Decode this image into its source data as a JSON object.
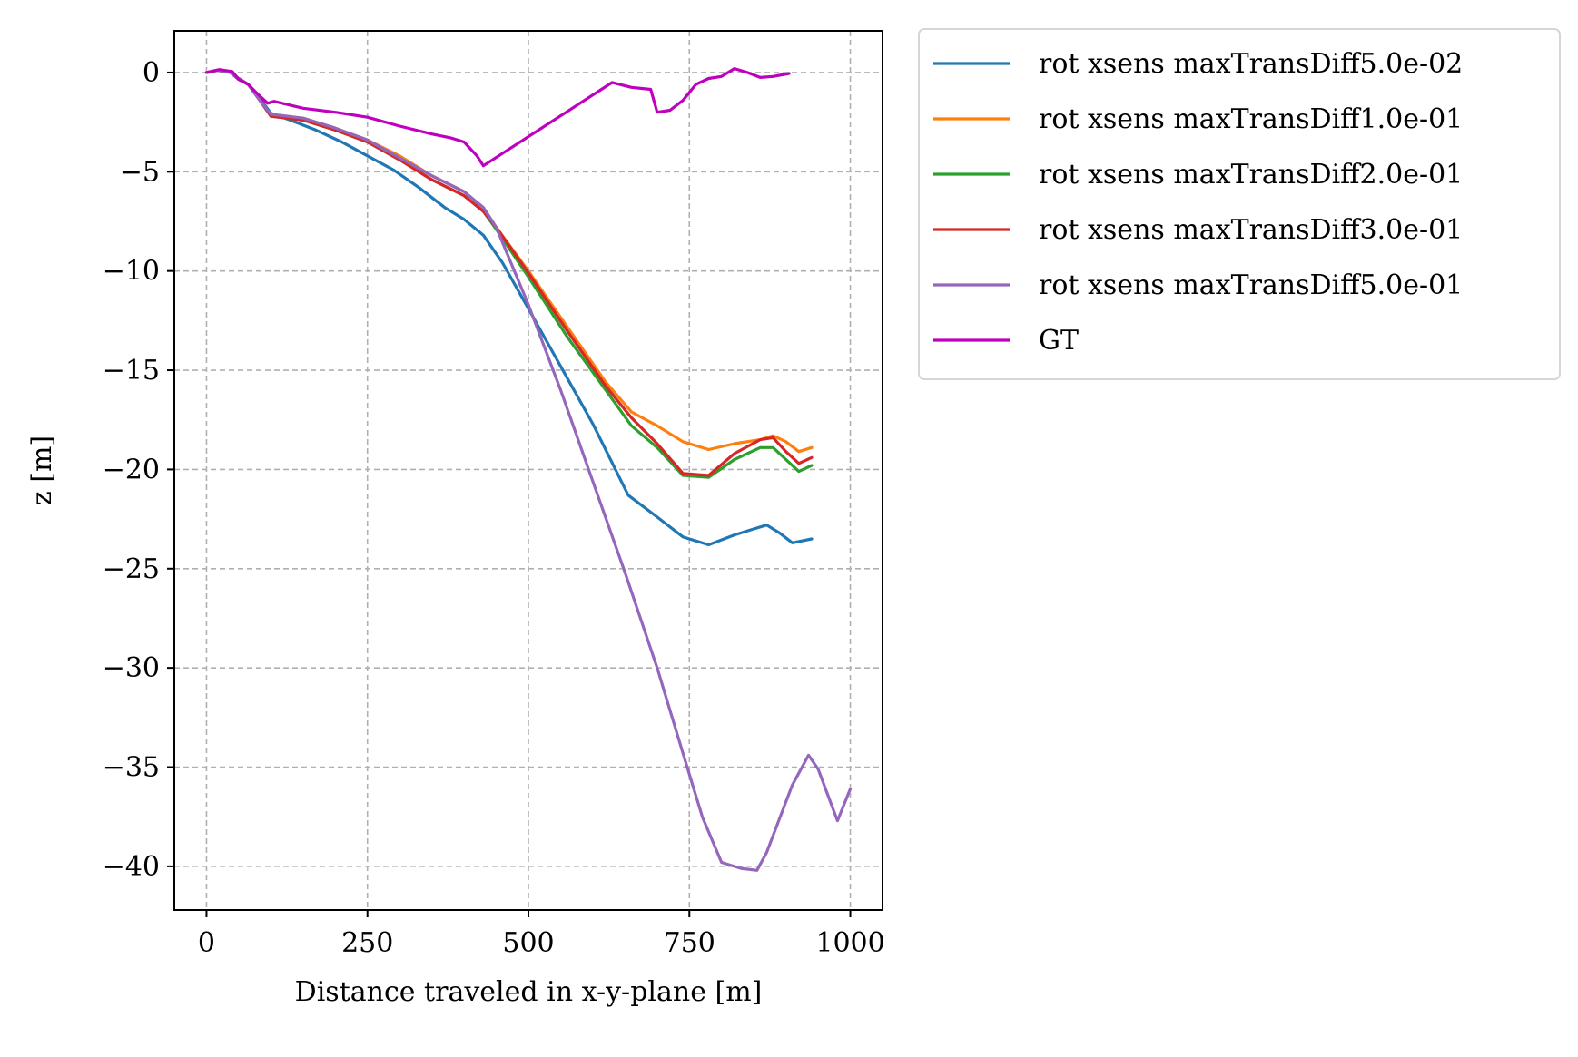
{
  "chart_data": {
    "type": "line",
    "title": "",
    "xlabel": "Distance traveled in x-y-plane [m]",
    "ylabel": "z [m]",
    "xlim": [
      -50,
      1050
    ],
    "ylim": [
      -42.2,
      2.1
    ],
    "xticks": [
      0,
      250,
      500,
      750,
      1000
    ],
    "xtick_labels": [
      "0",
      "250",
      "500",
      "750",
      "1000"
    ],
    "yticks": [
      0,
      -5,
      -10,
      -15,
      -20,
      -25,
      -30,
      -35,
      -40
    ],
    "ytick_labels": [
      "0",
      "−5",
      "−10",
      "−15",
      "−20",
      "−25",
      "−30",
      "−35",
      "−40"
    ],
    "grid": true,
    "legend_position": "outside-top-right",
    "series": [
      {
        "name": "rot xsens maxTransDiff5.0e-02",
        "color": "#1f77b4",
        "points": [
          [
            0,
            0
          ],
          [
            15,
            0.1
          ],
          [
            35,
            0.05
          ],
          [
            50,
            -0.35
          ],
          [
            65,
            -0.6
          ],
          [
            85,
            -1.4
          ],
          [
            100,
            -2.05
          ],
          [
            130,
            -2.4
          ],
          [
            170,
            -2.9
          ],
          [
            210,
            -3.5
          ],
          [
            250,
            -4.2
          ],
          [
            290,
            -4.9
          ],
          [
            330,
            -5.8
          ],
          [
            370,
            -6.8
          ],
          [
            400,
            -7.4
          ],
          [
            430,
            -8.2
          ],
          [
            460,
            -9.6
          ],
          [
            500,
            -11.9
          ],
          [
            550,
            -14.8
          ],
          [
            600,
            -17.7
          ],
          [
            655,
            -21.3
          ],
          [
            700,
            -22.4
          ],
          [
            740,
            -23.4
          ],
          [
            780,
            -23.8
          ],
          [
            820,
            -23.3
          ],
          [
            850,
            -23.0
          ],
          [
            870,
            -22.8
          ],
          [
            890,
            -23.2
          ],
          [
            910,
            -23.7
          ],
          [
            940,
            -23.5
          ]
        ]
      },
      {
        "name": "rot xsens maxTransDiff1.0e-01",
        "color": "#ff7f0e",
        "points": [
          [
            0,
            0
          ],
          [
            15,
            0.1
          ],
          [
            35,
            0.05
          ],
          [
            50,
            -0.3
          ],
          [
            65,
            -0.6
          ],
          [
            85,
            -1.5
          ],
          [
            100,
            -2.2
          ],
          [
            150,
            -2.3
          ],
          [
            200,
            -2.8
          ],
          [
            250,
            -3.4
          ],
          [
            300,
            -4.2
          ],
          [
            350,
            -5.2
          ],
          [
            400,
            -6.0
          ],
          [
            430,
            -6.8
          ],
          [
            450,
            -7.8
          ],
          [
            500,
            -10.0
          ],
          [
            560,
            -12.8
          ],
          [
            620,
            -15.6
          ],
          [
            660,
            -17.1
          ],
          [
            700,
            -17.8
          ],
          [
            740,
            -18.6
          ],
          [
            780,
            -19.0
          ],
          [
            820,
            -18.7
          ],
          [
            860,
            -18.5
          ],
          [
            880,
            -18.3
          ],
          [
            900,
            -18.6
          ],
          [
            920,
            -19.1
          ],
          [
            940,
            -18.9
          ]
        ]
      },
      {
        "name": "rot xsens maxTransDiff2.0e-01",
        "color": "#2ca02c",
        "points": [
          [
            0,
            0
          ],
          [
            15,
            0.1
          ],
          [
            35,
            0.05
          ],
          [
            50,
            -0.3
          ],
          [
            65,
            -0.6
          ],
          [
            85,
            -1.5
          ],
          [
            100,
            -2.2
          ],
          [
            150,
            -2.4
          ],
          [
            200,
            -2.9
          ],
          [
            250,
            -3.5
          ],
          [
            300,
            -4.4
          ],
          [
            350,
            -5.4
          ],
          [
            400,
            -6.2
          ],
          [
            430,
            -7.0
          ],
          [
            450,
            -7.9
          ],
          [
            500,
            -10.3
          ],
          [
            560,
            -13.3
          ],
          [
            620,
            -16.0
          ],
          [
            660,
            -17.8
          ],
          [
            700,
            -18.9
          ],
          [
            740,
            -20.3
          ],
          [
            780,
            -20.4
          ],
          [
            820,
            -19.5
          ],
          [
            860,
            -18.9
          ],
          [
            880,
            -18.9
          ],
          [
            900,
            -19.5
          ],
          [
            920,
            -20.1
          ],
          [
            940,
            -19.8
          ]
        ]
      },
      {
        "name": "rot xsens maxTransDiff3.0e-01",
        "color": "#d62728",
        "points": [
          [
            0,
            0
          ],
          [
            15,
            0.1
          ],
          [
            35,
            0.05
          ],
          [
            50,
            -0.3
          ],
          [
            65,
            -0.6
          ],
          [
            85,
            -1.5
          ],
          [
            100,
            -2.2
          ],
          [
            150,
            -2.4
          ],
          [
            200,
            -2.9
          ],
          [
            250,
            -3.5
          ],
          [
            300,
            -4.4
          ],
          [
            350,
            -5.4
          ],
          [
            400,
            -6.2
          ],
          [
            430,
            -7.0
          ],
          [
            450,
            -7.8
          ],
          [
            500,
            -10.1
          ],
          [
            560,
            -13.0
          ],
          [
            620,
            -15.8
          ],
          [
            660,
            -17.4
          ],
          [
            700,
            -18.7
          ],
          [
            740,
            -20.2
          ],
          [
            780,
            -20.3
          ],
          [
            820,
            -19.2
          ],
          [
            860,
            -18.5
          ],
          [
            880,
            -18.4
          ],
          [
            900,
            -19.1
          ],
          [
            920,
            -19.7
          ],
          [
            940,
            -19.4
          ]
        ]
      },
      {
        "name": "rot xsens maxTransDiff5.0e-01",
        "color": "#9467bd",
        "points": [
          [
            0,
            0
          ],
          [
            15,
            0.1
          ],
          [
            35,
            0.05
          ],
          [
            50,
            -0.3
          ],
          [
            65,
            -0.6
          ],
          [
            85,
            -1.5
          ],
          [
            100,
            -2.1
          ],
          [
            150,
            -2.3
          ],
          [
            200,
            -2.8
          ],
          [
            250,
            -3.4
          ],
          [
            300,
            -4.3
          ],
          [
            350,
            -5.2
          ],
          [
            400,
            -6.0
          ],
          [
            430,
            -6.8
          ],
          [
            450,
            -7.8
          ],
          [
            500,
            -11.7
          ],
          [
            550,
            -16.0
          ],
          [
            600,
            -20.6
          ],
          [
            650,
            -25.2
          ],
          [
            700,
            -30.0
          ],
          [
            740,
            -34.3
          ],
          [
            770,
            -37.5
          ],
          [
            800,
            -39.8
          ],
          [
            830,
            -40.1
          ],
          [
            855,
            -40.2
          ],
          [
            870,
            -39.3
          ],
          [
            890,
            -37.6
          ],
          [
            910,
            -35.9
          ],
          [
            935,
            -34.4
          ],
          [
            950,
            -35.1
          ],
          [
            965,
            -36.4
          ],
          [
            980,
            -37.7
          ],
          [
            1000,
            -36.1
          ]
        ]
      },
      {
        "name": "GT",
        "color": "#bf00bf",
        "points": [
          [
            0,
            0
          ],
          [
            20,
            0.15
          ],
          [
            40,
            0.05
          ],
          [
            50,
            -0.35
          ],
          [
            65,
            -0.6
          ],
          [
            80,
            -1.1
          ],
          [
            95,
            -1.55
          ],
          [
            105,
            -1.45
          ],
          [
            150,
            -1.8
          ],
          [
            200,
            -2.0
          ],
          [
            250,
            -2.25
          ],
          [
            300,
            -2.7
          ],
          [
            350,
            -3.1
          ],
          [
            380,
            -3.3
          ],
          [
            400,
            -3.5
          ],
          [
            420,
            -4.2
          ],
          [
            430,
            -4.7
          ],
          [
            630,
            -0.5
          ],
          [
            660,
            -0.75
          ],
          [
            690,
            -0.85
          ],
          [
            700,
            -2.0
          ],
          [
            720,
            -1.9
          ],
          [
            740,
            -1.4
          ],
          [
            760,
            -0.6
          ],
          [
            780,
            -0.3
          ],
          [
            800,
            -0.2
          ],
          [
            820,
            0.2
          ],
          [
            840,
            0.0
          ],
          [
            860,
            -0.25
          ],
          [
            880,
            -0.2
          ],
          [
            905,
            -0.05
          ]
        ]
      }
    ]
  }
}
